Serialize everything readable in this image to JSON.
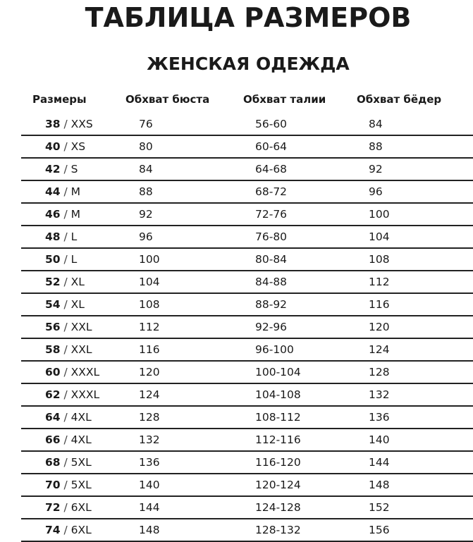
{
  "title": "ТАБЛИЦА РАЗМЕРОВ",
  "subtitle": "ЖЕНСКАЯ ОДЕЖДА",
  "headers": {
    "size": "Размеры",
    "bust": "Обхват бюста",
    "waist": "Обхват талии",
    "hips": "Обхват бёдер"
  },
  "rows": [
    {
      "ru": "38",
      "intl": "XXS",
      "bust": "76",
      "waist": "56-60",
      "hips": "84"
    },
    {
      "ru": "40",
      "intl": "XS",
      "bust": "80",
      "waist": "60-64",
      "hips": "88"
    },
    {
      "ru": "42",
      "intl": "S",
      "bust": "84",
      "waist": "64-68",
      "hips": "92"
    },
    {
      "ru": "44",
      "intl": "M",
      "bust": "88",
      "waist": "68-72",
      "hips": "96"
    },
    {
      "ru": "46",
      "intl": "M",
      "bust": "92",
      "waist": "72-76",
      "hips": "100"
    },
    {
      "ru": "48",
      "intl": "L",
      "bust": "96",
      "waist": "76-80",
      "hips": "104"
    },
    {
      "ru": "50",
      "intl": "L",
      "bust": "100",
      "waist": "80-84",
      "hips": "108"
    },
    {
      "ru": "52",
      "intl": "XL",
      "bust": "104",
      "waist": "84-88",
      "hips": "112"
    },
    {
      "ru": "54",
      "intl": "XL",
      "bust": "108",
      "waist": "88-92",
      "hips": "116"
    },
    {
      "ru": "56",
      "intl": "XXL",
      "bust": "112",
      "waist": "92-96",
      "hips": "120"
    },
    {
      "ru": "58",
      "intl": "XXL",
      "bust": "116",
      "waist": "96-100",
      "hips": "124"
    },
    {
      "ru": "60",
      "intl": "XXXL",
      "bust": "120",
      "waist": "100-104",
      "hips": "128"
    },
    {
      "ru": "62",
      "intl": "XXXL",
      "bust": "124",
      "waist": "104-108",
      "hips": "132"
    },
    {
      "ru": "64",
      "intl": "4XL",
      "bust": "128",
      "waist": "108-112",
      "hips": "136"
    },
    {
      "ru": "66",
      "intl": "4XL",
      "bust": "132",
      "waist": "112-116",
      "hips": "140"
    },
    {
      "ru": "68",
      "intl": "5XL",
      "bust": "136",
      "waist": "116-120",
      "hips": "144"
    },
    {
      "ru": "70",
      "intl": "5XL",
      "bust": "140",
      "waist": "120-124",
      "hips": "148"
    },
    {
      "ru": "72",
      "intl": "6XL",
      "bust": "144",
      "waist": "124-128",
      "hips": "152"
    },
    {
      "ru": "74",
      "intl": "6XL",
      "bust": "148",
      "waist": "128-132",
      "hips": "156"
    }
  ]
}
